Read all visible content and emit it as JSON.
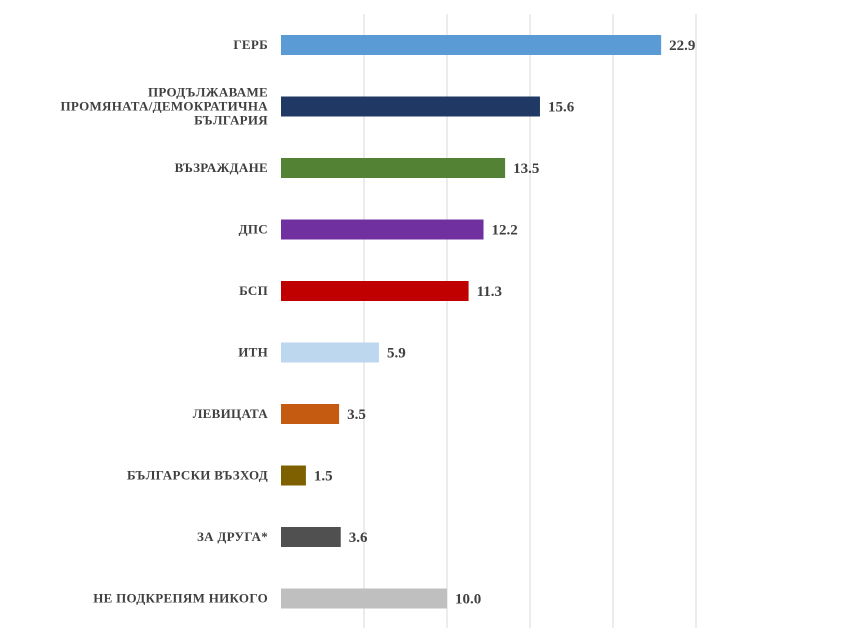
{
  "chart_data": {
    "type": "bar",
    "orientation": "horizontal",
    "categories": [
      "ГЕРБ",
      "ПРОДЪЛЖАВАМЕ ПРОМЯНАТА/ДЕМОКРАТИЧНА БЪЛГАРИЯ",
      "ВЪЗРАЖДАНЕ",
      "ДПС",
      "БСП",
      "ИТН",
      "ЛЕВИЦАТА",
      "БЪЛГАРСКИ ВЪЗХОД",
      "ЗА ДРУГА*",
      "НЕ ПОДКРЕПЯМ НИКОГО"
    ],
    "category_lines": [
      [
        "ГЕРБ"
      ],
      [
        "ПРОДЪЛЖАВАМЕ",
        "ПРОМЯНАТА/ДЕМОКРАТИЧНА",
        "БЪЛГАРИЯ"
      ],
      [
        "ВЪЗРАЖДАНЕ"
      ],
      [
        "ДПС"
      ],
      [
        "БСП"
      ],
      [
        "ИТН"
      ],
      [
        "ЛЕВИЦАТА"
      ],
      [
        "БЪЛГАРСКИ ВЪЗХОД"
      ],
      [
        "ЗА ДРУГА*"
      ],
      [
        "НЕ ПОДКРЕПЯМ НИКОГО"
      ]
    ],
    "values": [
      22.9,
      15.6,
      13.5,
      12.2,
      11.3,
      5.9,
      3.5,
      1.5,
      3.6,
      10.0
    ],
    "value_labels": [
      "22.9",
      "15.6",
      "13.5",
      "12.2",
      "11.3",
      "5.9",
      "3.5",
      "1.5",
      "3.6",
      "10.0"
    ],
    "colors": [
      "#5b9bd5",
      "#1f3864",
      "#548235",
      "#7030a0",
      "#c00000",
      "#bdd7ee",
      "#c55a11",
      "#7f6000",
      "#505050",
      "#bfbfbf"
    ],
    "xlim": [
      0,
      25
    ],
    "gridlines": [
      0,
      5,
      10,
      15,
      20,
      25
    ],
    "grid": true,
    "legend": "none",
    "title": "",
    "xlabel": "",
    "ylabel": ""
  }
}
